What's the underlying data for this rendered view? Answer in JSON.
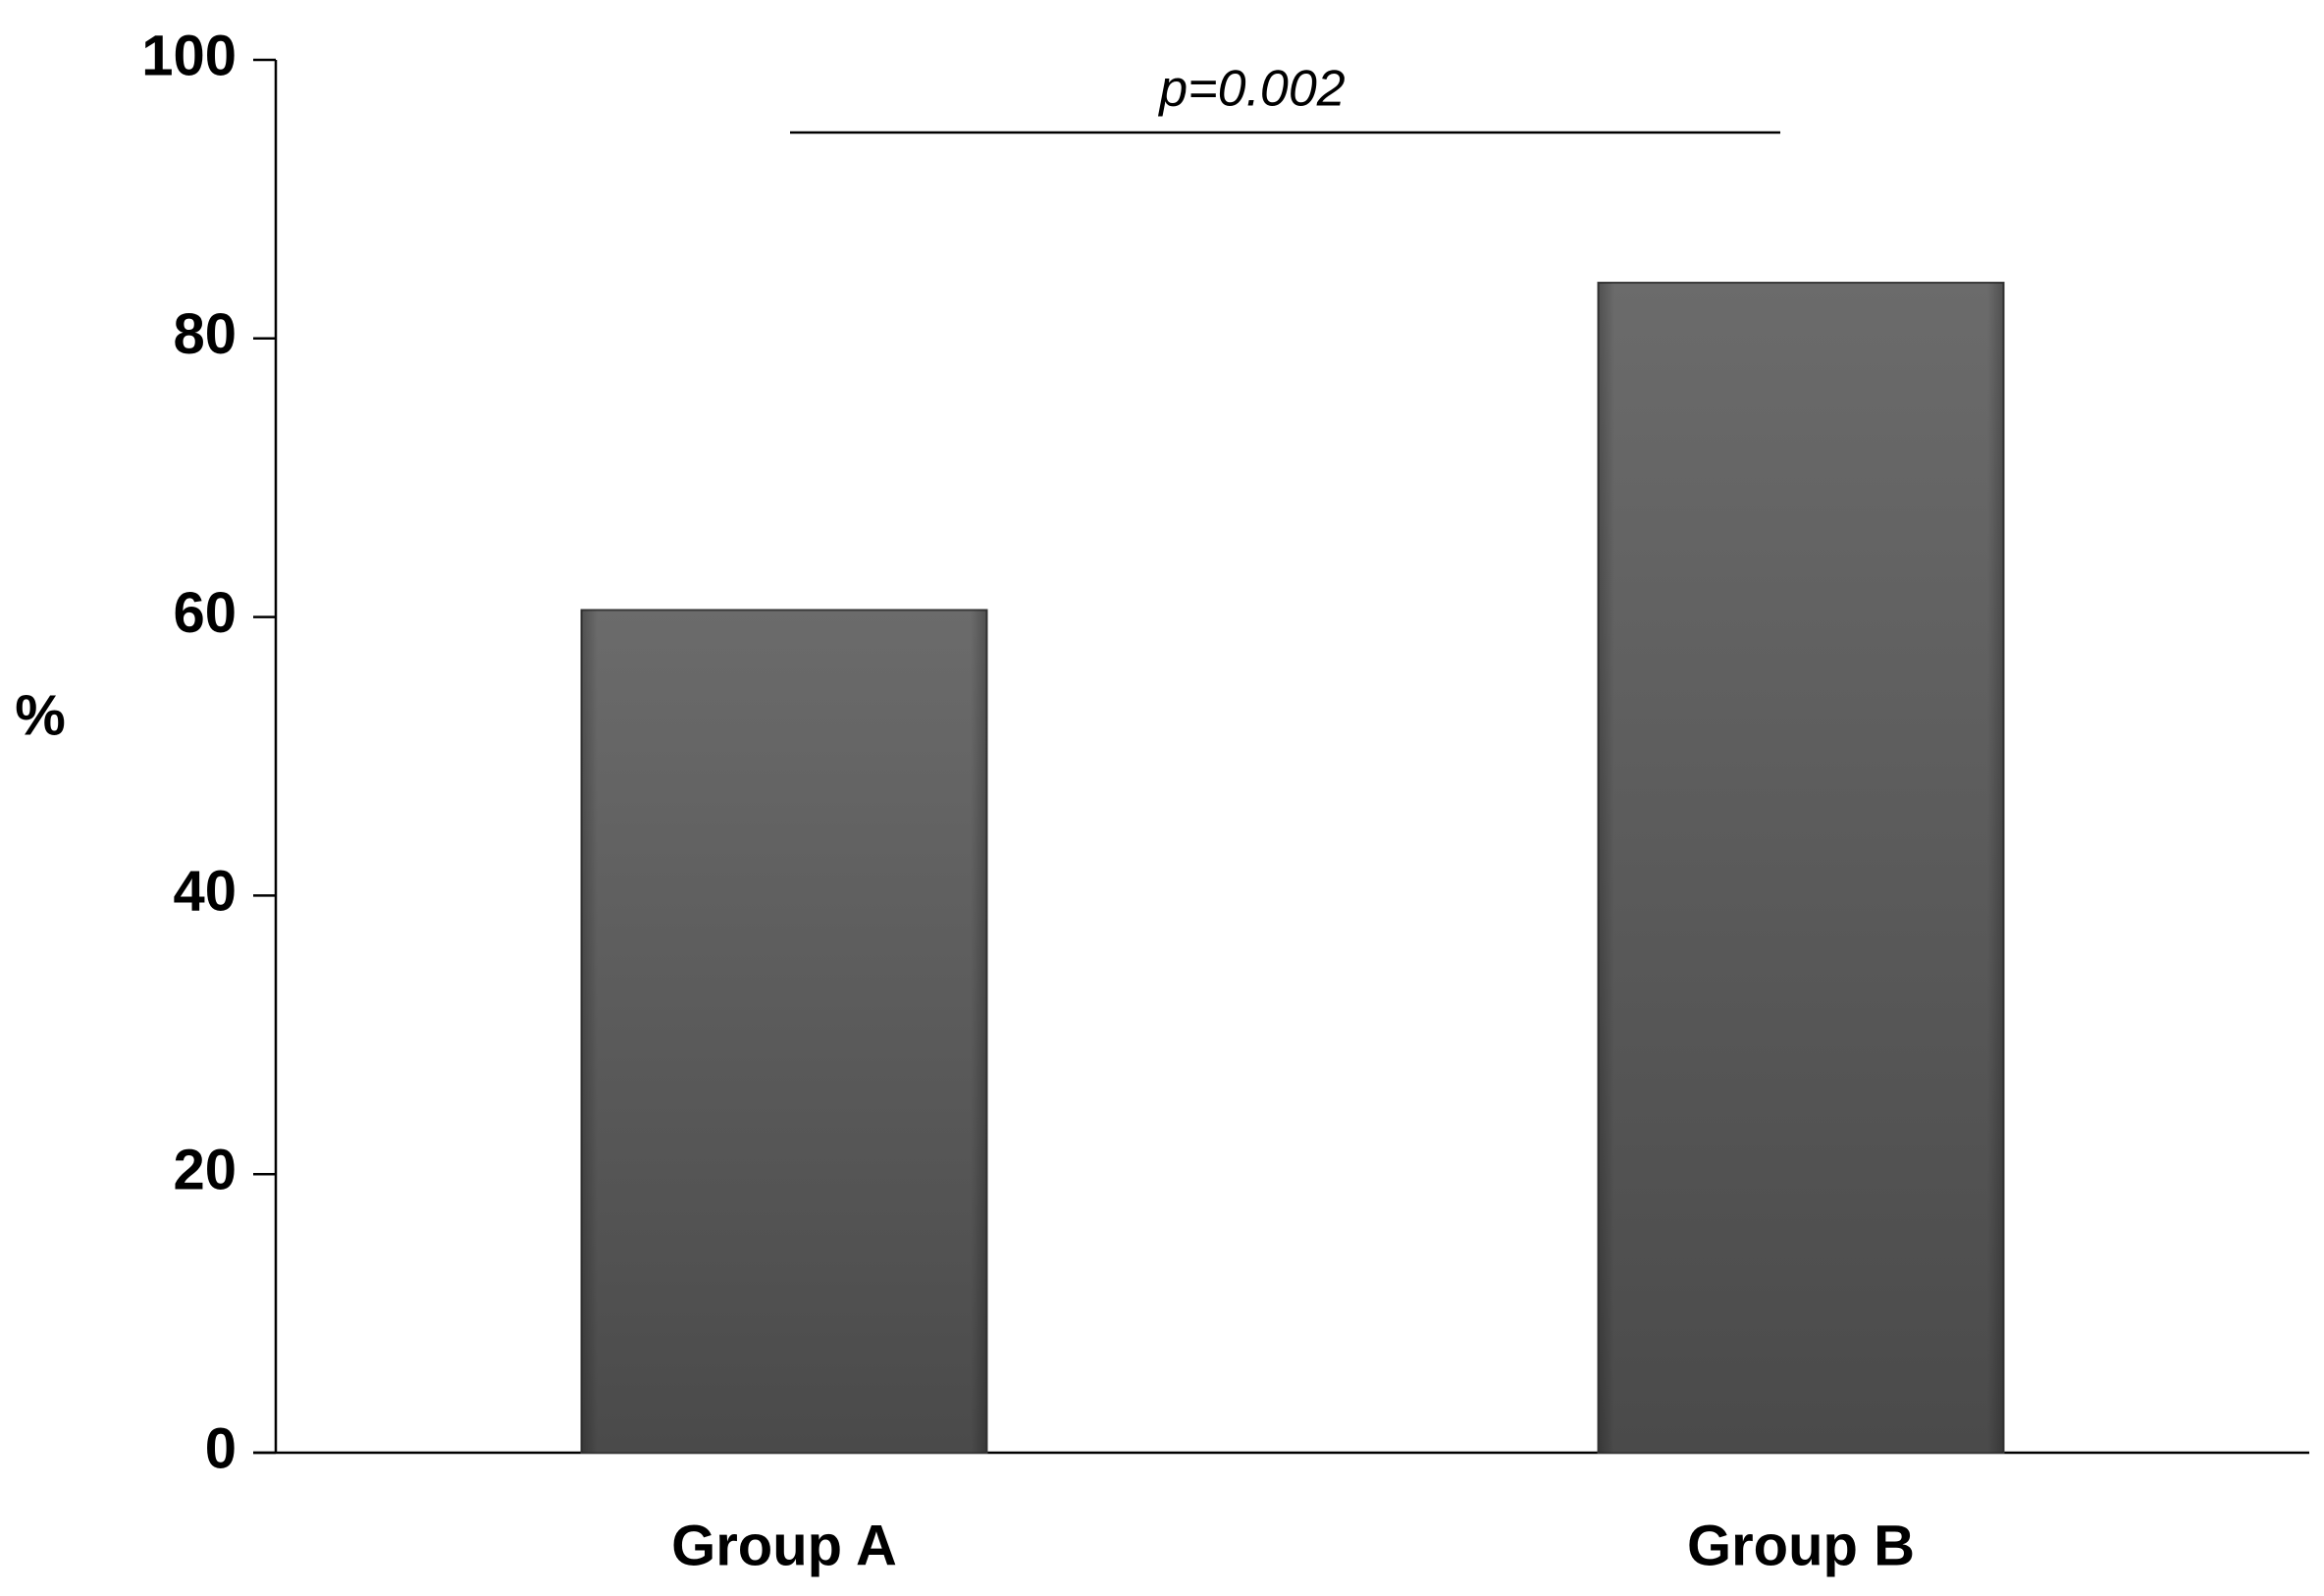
{
  "chart_data": {
    "type": "bar",
    "y_label": "%",
    "annotation": "p=0.002",
    "categories": [
      "Group A",
      "Group B"
    ],
    "values": [
      60.5,
      84
    ],
    "color": "#5a5a5a",
    "ylim": [
      0,
      100
    ],
    "yticks": [
      0,
      20,
      40,
      60,
      80,
      100
    ],
    "grid": false
  }
}
